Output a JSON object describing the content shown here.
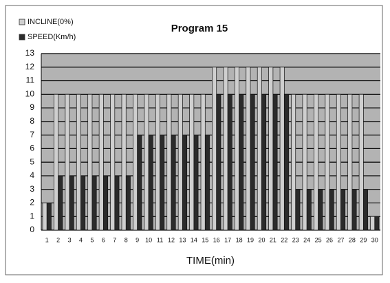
{
  "chart_data": {
    "type": "bar",
    "title": "Program 15",
    "x_label": "TIME(min)",
    "categories": [
      "1",
      "2",
      "3",
      "4",
      "5",
      "6",
      "7",
      "8",
      "9",
      "10",
      "11",
      "12",
      "13",
      "14",
      "15",
      "16",
      "17",
      "18",
      "19",
      "20",
      "21",
      "22",
      "23",
      "24",
      "25",
      "26",
      "27",
      "28",
      "29",
      "30"
    ],
    "series": [
      {
        "name": "INCLINE(0%)",
        "color": "#cfcfcf",
        "values": [
          2,
          10,
          10,
          10,
          10,
          10,
          10,
          10,
          10,
          10,
          10,
          10,
          10,
          10,
          10,
          12,
          12,
          12,
          12,
          12,
          12,
          12,
          10,
          10,
          10,
          10,
          10,
          10,
          10,
          1
        ]
      },
      {
        "name": "SPEED(Km/h)",
        "color": "#2b2b2b",
        "values": [
          2,
          4,
          4,
          4,
          4,
          4,
          4,
          4,
          7,
          7,
          7,
          7,
          7,
          7,
          7,
          10,
          10,
          10,
          10,
          10,
          10,
          10,
          3,
          3,
          3,
          3,
          3,
          3,
          3,
          1
        ]
      }
    ],
    "ylim": [
      0,
      13
    ],
    "yticks": [
      0,
      1,
      2,
      3,
      4,
      5,
      6,
      7,
      8,
      9,
      10,
      11,
      12,
      13
    ],
    "grid": true,
    "legend": "top-left"
  }
}
